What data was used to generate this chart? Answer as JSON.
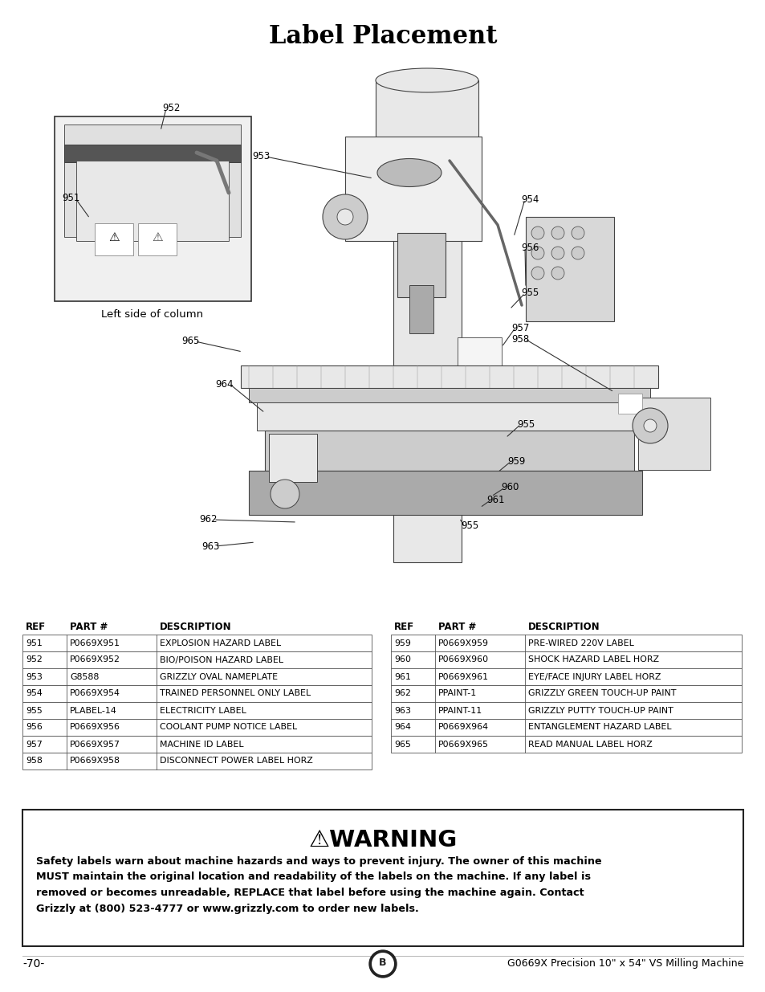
{
  "title": "Label Placement",
  "title_fontsize": 22,
  "title_fontweight": "bold",
  "bg_color": "#ffffff",
  "text_color": "#000000",
  "page_number": "-70-",
  "footer_text": "G0669X Precision 10\" x 54\" VS Milling Machine",
  "left_caption": "Left side of column",
  "table_left": {
    "headers": [
      "REF",
      "PART #",
      "DESCRIPTION"
    ],
    "rows": [
      [
        "951",
        "P0669X951",
        "EXPLOSION HAZARD LABEL"
      ],
      [
        "952",
        "P0669X952",
        "BIO/POISON HAZARD LABEL"
      ],
      [
        "953",
        "G8588",
        "GRIZZLY OVAL NAMEPLATE"
      ],
      [
        "954",
        "P0669X954",
        "TRAINED PERSONNEL ONLY LABEL"
      ],
      [
        "955",
        "PLABEL-14",
        "ELECTRICITY LABEL"
      ],
      [
        "956",
        "P0669X956",
        "COOLANT PUMP NOTICE LABEL"
      ],
      [
        "957",
        "P0669X957",
        "MACHINE ID LABEL"
      ],
      [
        "958",
        "P0669X958",
        "DISCONNECT POWER LABEL HORZ"
      ]
    ]
  },
  "table_right": {
    "headers": [
      "REF",
      "PART #",
      "DESCRIPTION"
    ],
    "rows": [
      [
        "959",
        "P0669X959",
        "PRE-WIRED 220V LABEL"
      ],
      [
        "960",
        "P0669X960",
        "SHOCK HAZARD LABEL HORZ"
      ],
      [
        "961",
        "P0669X961",
        "EYE/FACE INJURY LABEL HORZ"
      ],
      [
        "962",
        "PPAINT-1",
        "GRIZZLY GREEN TOUCH-UP PAINT"
      ],
      [
        "963",
        "PPAINT-11",
        "GRIZZLY PUTTY TOUCH-UP PAINT"
      ],
      [
        "964",
        "P0669X964",
        "ENTANGLEMENT HAZARD LABEL"
      ],
      [
        "965",
        "P0669X965",
        "READ MANUAL LABEL HORZ"
      ]
    ]
  },
  "warning_text": "Safety labels warn about machine hazards and ways to prevent injury. The owner of this machine\nMUST maintain the original location and readability of the labels on the machine. If any label is\nremoved or becomes unreadable, REPLACE that label before using the machine again. Contact\nGrizzly at (800) 523-4777 or www.grizzly.com to order new labels."
}
